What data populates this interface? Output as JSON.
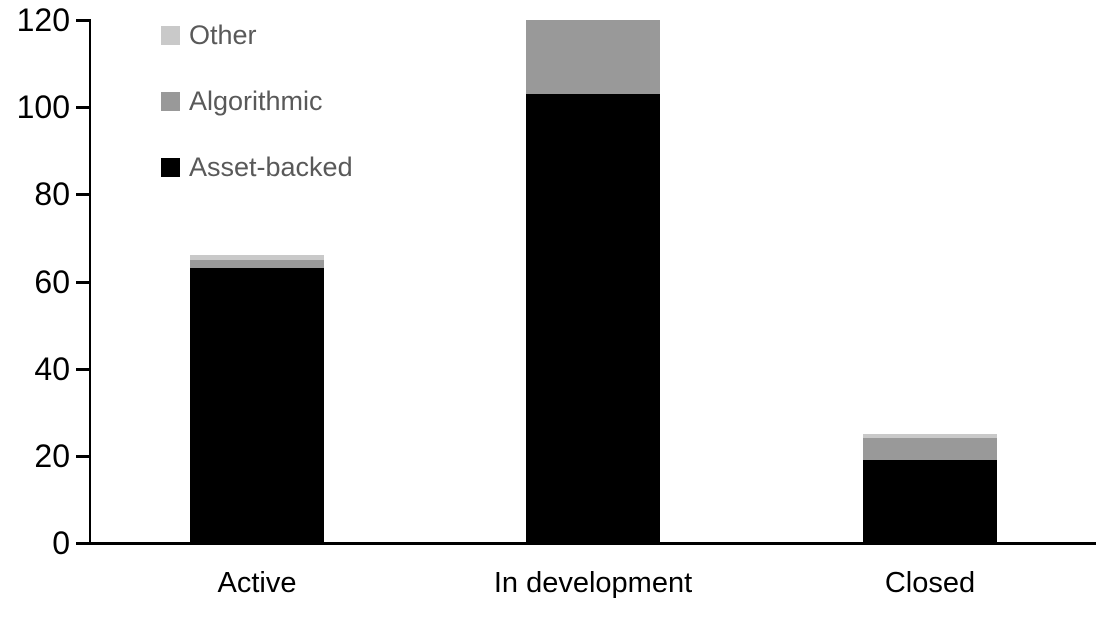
{
  "chart_data": {
    "type": "bar",
    "stacked": true,
    "title": "",
    "xlabel": "",
    "ylabel": "",
    "categories": [
      "Active",
      "In development",
      "Closed"
    ],
    "series": [
      {
        "name": "Asset-backed",
        "color": "#000000",
        "values": [
          63,
          103,
          19
        ]
      },
      {
        "name": "Algorithmic",
        "color": "#999999",
        "values": [
          2,
          17,
          5
        ]
      },
      {
        "name": "Other",
        "color": "#c9c9c9",
        "values": [
          1,
          0,
          1
        ]
      }
    ],
    "totals": [
      66,
      120,
      25
    ],
    "ylim": [
      0,
      120
    ],
    "yticks": [
      0,
      20,
      40,
      60,
      80,
      100,
      120
    ],
    "grid": false,
    "legend_position": "top-left",
    "legend_order_top_to_bottom": [
      "Other",
      "Algorithmic",
      "Asset-backed"
    ]
  },
  "legend": {
    "items": [
      {
        "label": "Other",
        "color": "#c9c9c9"
      },
      {
        "label": "Algorithmic",
        "color": "#999999"
      },
      {
        "label": "Asset-backed",
        "color": "#000000"
      }
    ]
  },
  "colors": {
    "axis": "#000000",
    "tick_label": "#000000",
    "category_label": "#000000",
    "legend_text": "#595959",
    "background": "#ffffff"
  }
}
